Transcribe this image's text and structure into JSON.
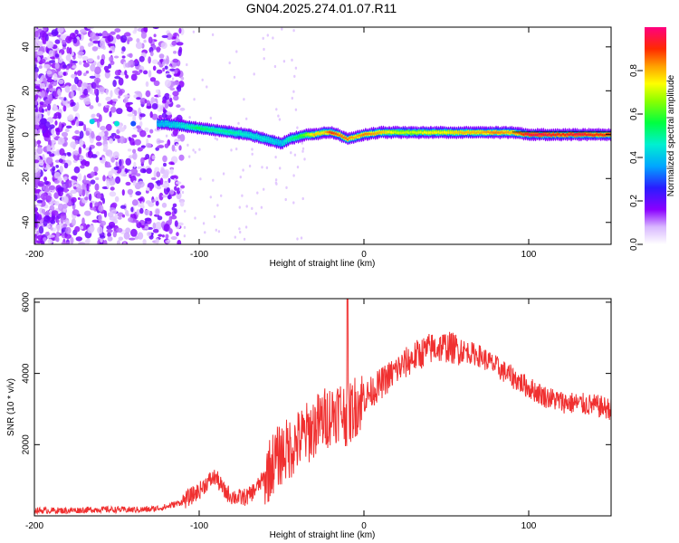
{
  "title": "GN04.2025.274.01.07.R11",
  "colors": {
    "snr_line": "#f03030",
    "axis": "#000000",
    "background": "#ffffff"
  },
  "chart_data": [
    {
      "type": "heatmap",
      "xlabel": "Height of straight line (km)",
      "ylabel": "Frequency (Hz)",
      "xlim": [
        -200,
        150
      ],
      "ylim": [
        -50,
        49
      ],
      "x_ticks": [
        -200,
        -100,
        0,
        100
      ],
      "x_tick_labels": [
        "-200",
        "-100",
        "0",
        "100"
      ],
      "y_ticks": [
        -40,
        -20,
        0,
        20,
        40
      ],
      "y_tick_labels": [
        "-40",
        "-20",
        "0",
        "20",
        "40"
      ],
      "colorbar": {
        "label": "Normalized spectral amplitude",
        "range": [
          0.0,
          1.0
        ],
        "ticks": [
          0.0,
          0.2,
          0.4,
          0.6,
          0.8
        ],
        "tick_labels": [
          "0.0",
          "0.2",
          "0.4",
          "0.6",
          "0.8"
        ]
      },
      "ridge": {
        "x": [
          -165,
          -150,
          -140,
          -130,
          -120,
          -110,
          -100,
          -90,
          -80,
          -70,
          -60,
          -50,
          -45,
          -40,
          -35,
          -30,
          -25,
          -20,
          -15,
          -10,
          -5,
          0,
          10,
          20,
          30,
          40,
          50,
          60,
          70,
          80,
          90,
          100,
          110,
          120,
          130,
          140,
          150
        ],
        "freq": [
          6,
          5,
          5,
          5,
          5,
          4,
          3,
          2,
          1,
          0,
          -2,
          -4,
          -2,
          -1,
          0,
          0,
          1,
          1,
          0,
          -2,
          -1,
          0,
          1,
          1,
          1,
          1,
          1,
          1,
          1,
          1,
          1,
          0,
          0,
          0,
          0,
          0,
          0
        ],
        "amplitude": [
          0.35,
          0.3,
          0.3,
          0.35,
          0.4,
          0.45,
          0.55,
          0.5,
          0.5,
          0.45,
          0.45,
          0.4,
          0.5,
          0.55,
          0.65,
          0.8,
          0.75,
          0.9,
          0.85,
          0.85,
          0.8,
          0.85,
          0.8,
          0.7,
          0.7,
          0.75,
          0.75,
          0.8,
          0.8,
          0.85,
          0.8,
          0.95,
          0.95,
          0.9,
          0.95,
          0.9,
          0.9
        ]
      }
    },
    {
      "type": "line",
      "xlabel": "Height of straight line (km)",
      "ylabel": "SNR (10 * v/v)",
      "xlim": [
        -200,
        150
      ],
      "ylim": [
        0,
        6100
      ],
      "x_ticks": [
        -200,
        -100,
        0,
        100
      ],
      "x_tick_labels": [
        "-200",
        "-100",
        "0",
        "100"
      ],
      "y_ticks": [
        2000,
        4000,
        6000
      ],
      "y_tick_labels": [
        "2000",
        "4000",
        "6000"
      ],
      "series": [
        {
          "name": "SNR",
          "x": [
            -200,
            -180,
            -160,
            -140,
            -130,
            -120,
            -110,
            -100,
            -95,
            -90,
            -85,
            -80,
            -75,
            -70,
            -65,
            -60,
            -55,
            -50,
            -45,
            -40,
            -35,
            -30,
            -25,
            -20,
            -15,
            -10,
            -5,
            0,
            5,
            10,
            20,
            30,
            40,
            50,
            60,
            70,
            80,
            90,
            100,
            110,
            120,
            130,
            140,
            150
          ],
          "y": [
            150,
            150,
            180,
            170,
            180,
            250,
            400,
            700,
            950,
            1100,
            700,
            550,
            500,
            550,
            800,
            1100,
            1500,
            1750,
            1900,
            2100,
            2300,
            2500,
            2700,
            2850,
            3000,
            2800,
            3100,
            3300,
            3500,
            3700,
            4100,
            4450,
            4700,
            4750,
            4650,
            4500,
            4200,
            3900,
            3600,
            3350,
            3200,
            3150,
            3100,
            3000
          ]
        }
      ]
    }
  ]
}
